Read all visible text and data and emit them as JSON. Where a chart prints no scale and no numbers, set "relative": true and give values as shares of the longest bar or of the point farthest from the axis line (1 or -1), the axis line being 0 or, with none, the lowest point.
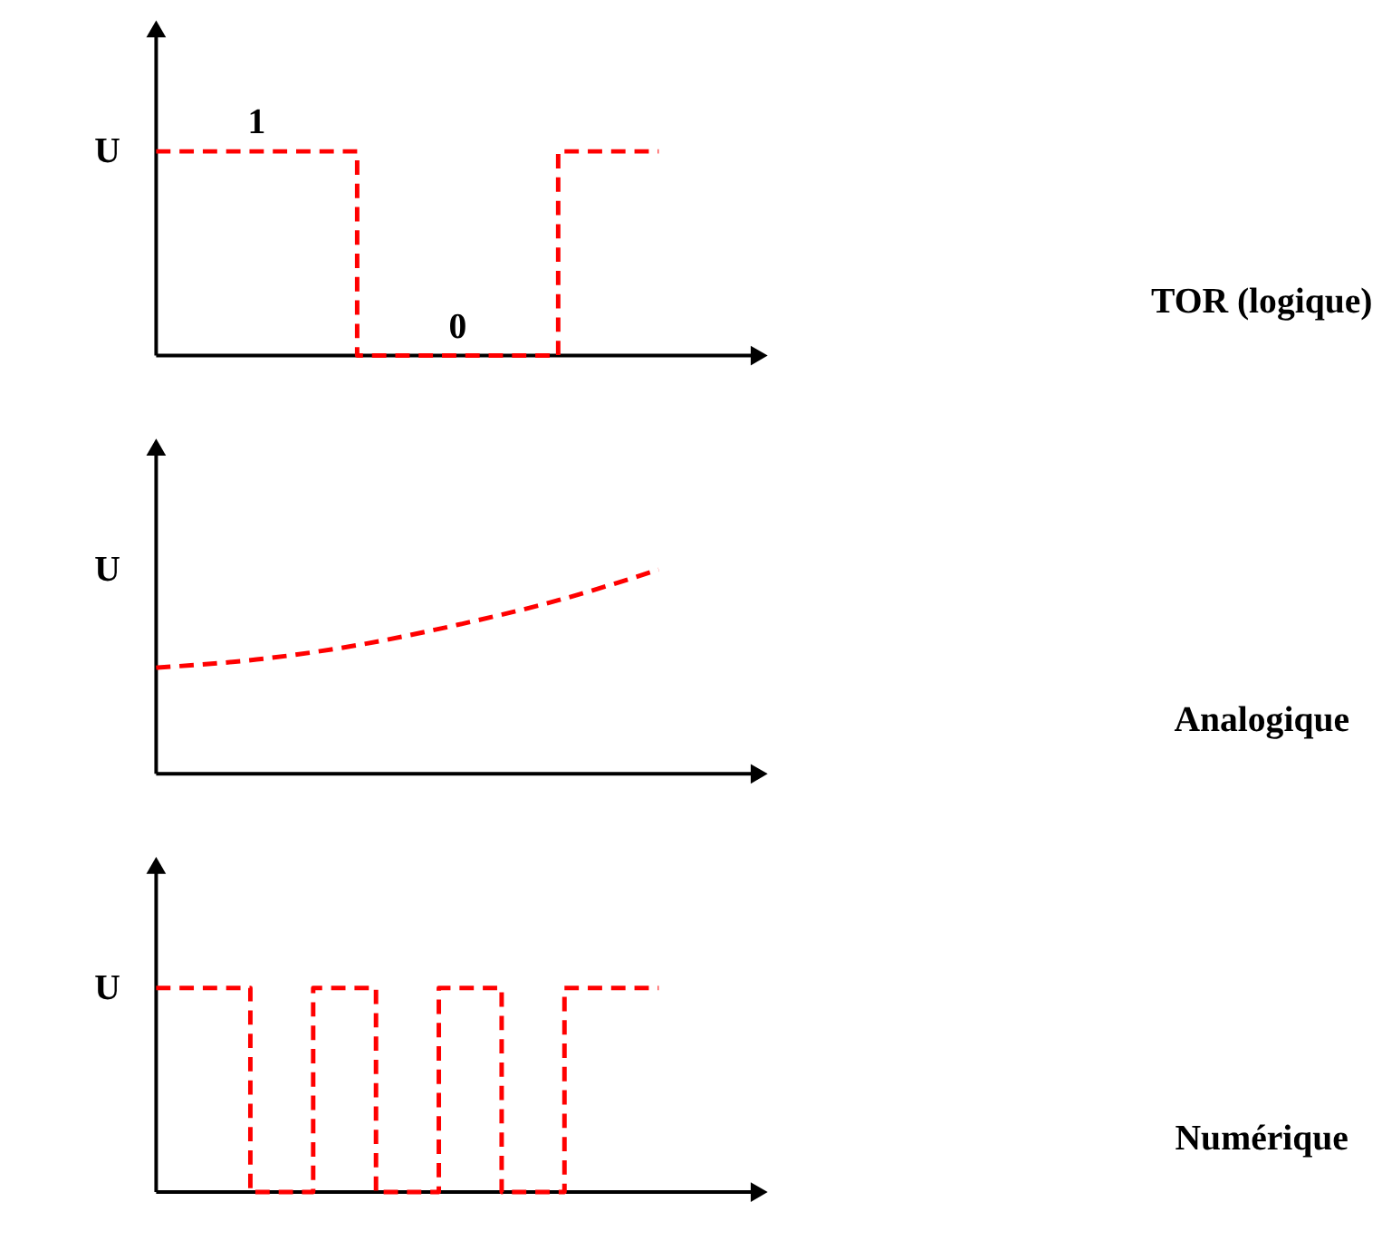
{
  "chart_data": [
    {
      "type": "step",
      "relative": true,
      "ylabel": "U",
      "line_style": "dashed",
      "categories": [
        null,
        null,
        null,
        null,
        null,
        null
      ],
      "series": [
        {
          "color": "#ff0000",
          "values": [
            1,
            1,
            0,
            0,
            1,
            1
          ]
        }
      ],
      "annotations": [
        {
          "text": "1",
          "y": 1
        },
        {
          "text": "0",
          "y": 0
        },
        "TOR (logique)"
      ]
    },
    {
      "type": "line",
      "relative": true,
      "ylabel": "U",
      "line_style": "dashed",
      "categories": [
        null,
        null,
        null,
        null,
        null,
        null
      ],
      "series": [
        {
          "color": "#ff0000",
          "values": [
            0.52,
            0.56,
            0.63,
            0.73,
            0.85,
            1
          ]
        }
      ],
      "annotations": [
        "Analogique"
      ]
    },
    {
      "type": "step",
      "relative": true,
      "ylabel": "U",
      "line_style": "dashed",
      "categories": [
        null,
        null,
        null,
        null,
        null,
        null,
        null,
        null,
        null,
        null,
        null,
        null,
        null,
        null,
        null,
        null,
        null
      ],
      "series": [
        {
          "color": "#ff0000",
          "values": [
            1,
            1,
            1,
            0,
            0,
            1,
            1,
            0,
            0,
            1,
            1,
            0,
            0,
            1,
            1,
            1,
            1
          ]
        }
      ],
      "annotations": [
        "Numérique"
      ]
    }
  ]
}
